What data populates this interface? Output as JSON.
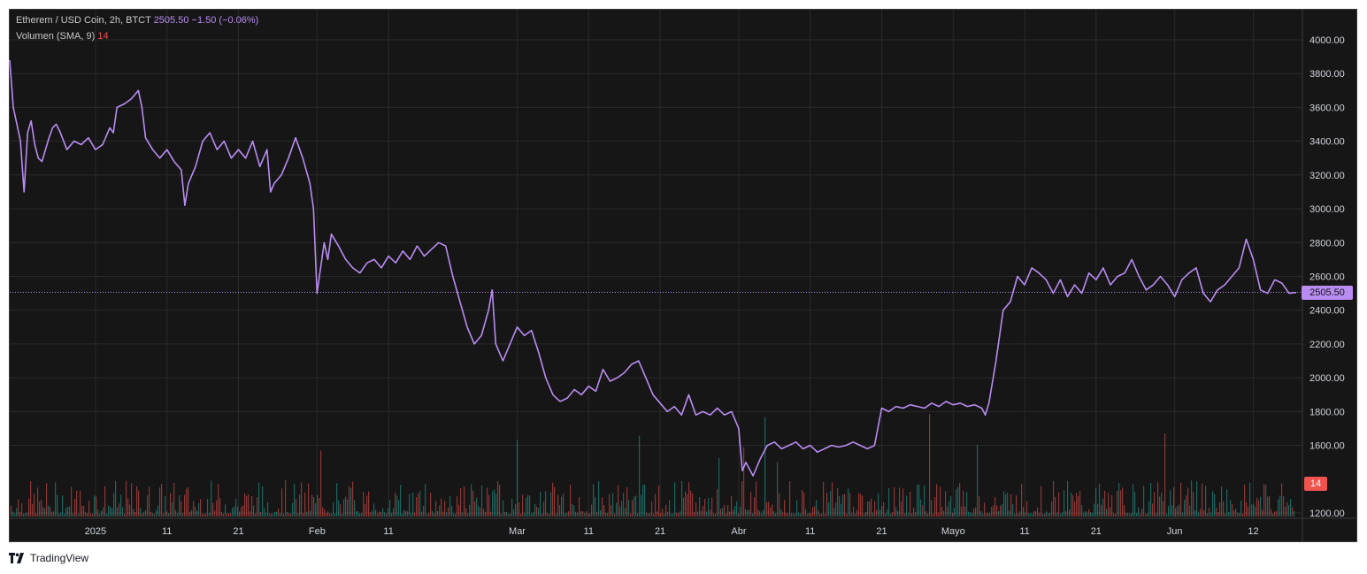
{
  "legend": {
    "symbol": "Etherem / USD Coin, 2h, BTCT",
    "last": "2505.50",
    "change": "−1.50 (−0.06%)",
    "volume_label": "Volumen (SMA, 9)",
    "volume_value": "14"
  },
  "price_tag": "2505.50",
  "volume_tag": "14",
  "brand": {
    "name": "TradingView",
    "logo_icon": "tradingview-logo-icon"
  },
  "colors": {
    "line": "#b98cf2",
    "up_volume": "#26a69a",
    "down_volume": "#ef5350",
    "background": "#161616",
    "grid": "#2a2a2a"
  },
  "chart_data": {
    "type": "line",
    "title": "Etherem / USD Coin, 2h, BTCT",
    "xlabel": "",
    "ylabel": "",
    "ylim": [
      1150,
      4150
    ],
    "yticks": [
      4000,
      3800,
      3600,
      3400,
      3200,
      3000,
      2800,
      2600,
      2400,
      2200,
      2000,
      1800,
      1600,
      1200
    ],
    "ytick_labels": [
      "4000.00",
      "3800.00",
      "3600.00",
      "3400.00",
      "3200.00",
      "3000.00",
      "2800.00",
      "2600.00",
      "2400.00",
      "2200.00",
      "2000.00",
      "1800.00",
      "1600.00",
      "1200.00"
    ],
    "xticks": [
      {
        "label": "2025",
        "t": 5
      },
      {
        "label": "11",
        "t": 15
      },
      {
        "label": "21",
        "t": 25
      },
      {
        "label": "Feb",
        "t": 36
      },
      {
        "label": "11",
        "t": 46
      },
      {
        "label": "Mar",
        "t": 64
      },
      {
        "label": "11",
        "t": 74
      },
      {
        "label": "21",
        "t": 84
      },
      {
        "label": "Abr",
        "t": 95
      },
      {
        "label": "11",
        "t": 105
      },
      {
        "label": "21",
        "t": 115
      },
      {
        "label": "Mayo",
        "t": 125
      },
      {
        "label": "11",
        "t": 135
      },
      {
        "label": "21",
        "t": 145
      },
      {
        "label": "Jun",
        "t": 156
      },
      {
        "label": "12",
        "t": 167
      }
    ],
    "x_range": [
      -7,
      173
    ],
    "price_line": 2505.5,
    "series": [
      {
        "points": [
          [
            -7,
            3880
          ],
          [
            -6.5,
            3600
          ],
          [
            -6,
            3500
          ],
          [
            -5.5,
            3400
          ],
          [
            -5,
            3100
          ],
          [
            -4.5,
            3450
          ],
          [
            -4,
            3520
          ],
          [
            -3.5,
            3380
          ],
          [
            -3,
            3300
          ],
          [
            -2.5,
            3280
          ],
          [
            -2,
            3350
          ],
          [
            -1.5,
            3420
          ],
          [
            -1,
            3480
          ],
          [
            -0.5,
            3500
          ],
          [
            0,
            3460
          ],
          [
            1,
            3350
          ],
          [
            2,
            3400
          ],
          [
            3,
            3380
          ],
          [
            4,
            3420
          ],
          [
            5,
            3350
          ],
          [
            6,
            3380
          ],
          [
            7,
            3480
          ],
          [
            7.5,
            3450
          ],
          [
            8,
            3600
          ],
          [
            9,
            3620
          ],
          [
            10,
            3650
          ],
          [
            11,
            3700
          ],
          [
            11.5,
            3600
          ],
          [
            12,
            3420
          ],
          [
            13,
            3350
          ],
          [
            14,
            3300
          ],
          [
            15,
            3350
          ],
          [
            16,
            3280
          ],
          [
            17,
            3230
          ],
          [
            17.5,
            3020
          ],
          [
            18,
            3150
          ],
          [
            19,
            3250
          ],
          [
            20,
            3400
          ],
          [
            21,
            3450
          ],
          [
            22,
            3350
          ],
          [
            23,
            3400
          ],
          [
            24,
            3300
          ],
          [
            25,
            3350
          ],
          [
            26,
            3300
          ],
          [
            27,
            3400
          ],
          [
            28,
            3250
          ],
          [
            29,
            3350
          ],
          [
            29.5,
            3100
          ],
          [
            30,
            3150
          ],
          [
            31,
            3200
          ],
          [
            32,
            3300
          ],
          [
            33,
            3420
          ],
          [
            34,
            3300
          ],
          [
            35,
            3150
          ],
          [
            35.5,
            3000
          ],
          [
            36,
            2500
          ],
          [
            37,
            2800
          ],
          [
            37.5,
            2700
          ],
          [
            38,
            2850
          ],
          [
            39,
            2780
          ],
          [
            40,
            2700
          ],
          [
            41,
            2650
          ],
          [
            42,
            2620
          ],
          [
            43,
            2680
          ],
          [
            44,
            2700
          ],
          [
            45,
            2650
          ],
          [
            46,
            2720
          ],
          [
            47,
            2680
          ],
          [
            48,
            2750
          ],
          [
            49,
            2700
          ],
          [
            50,
            2780
          ],
          [
            51,
            2720
          ],
          [
            52,
            2760
          ],
          [
            53,
            2800
          ],
          [
            54,
            2780
          ],
          [
            55,
            2600
          ],
          [
            56,
            2450
          ],
          [
            57,
            2300
          ],
          [
            58,
            2200
          ],
          [
            59,
            2250
          ],
          [
            60,
            2400
          ],
          [
            60.5,
            2520
          ],
          [
            61,
            2200
          ],
          [
            62,
            2100
          ],
          [
            63,
            2200
          ],
          [
            64,
            2300
          ],
          [
            65,
            2250
          ],
          [
            66,
            2280
          ],
          [
            67,
            2150
          ],
          [
            68,
            2000
          ],
          [
            69,
            1900
          ],
          [
            70,
            1860
          ],
          [
            71,
            1880
          ],
          [
            72,
            1930
          ],
          [
            73,
            1900
          ],
          [
            74,
            1950
          ],
          [
            75,
            1920
          ],
          [
            76,
            2050
          ],
          [
            77,
            1980
          ],
          [
            78,
            2000
          ],
          [
            79,
            2030
          ],
          [
            80,
            2080
          ],
          [
            81,
            2100
          ],
          [
            82,
            2000
          ],
          [
            83,
            1900
          ],
          [
            84,
            1850
          ],
          [
            85,
            1800
          ],
          [
            86,
            1830
          ],
          [
            87,
            1780
          ],
          [
            88,
            1900
          ],
          [
            89,
            1780
          ],
          [
            90,
            1800
          ],
          [
            91,
            1780
          ],
          [
            92,
            1820
          ],
          [
            93,
            1780
          ],
          [
            94,
            1800
          ],
          [
            95,
            1700
          ],
          [
            95.5,
            1450
          ],
          [
            96,
            1500
          ],
          [
            97,
            1420
          ],
          [
            98,
            1520
          ],
          [
            99,
            1600
          ],
          [
            100,
            1620
          ],
          [
            101,
            1580
          ],
          [
            102,
            1600
          ],
          [
            103,
            1620
          ],
          [
            104,
            1580
          ],
          [
            105,
            1600
          ],
          [
            106,
            1560
          ],
          [
            107,
            1580
          ],
          [
            108,
            1600
          ],
          [
            109,
            1590
          ],
          [
            110,
            1600
          ],
          [
            111,
            1620
          ],
          [
            112,
            1600
          ],
          [
            113,
            1580
          ],
          [
            114,
            1600
          ],
          [
            115,
            1820
          ],
          [
            116,
            1800
          ],
          [
            117,
            1830
          ],
          [
            118,
            1820
          ],
          [
            119,
            1840
          ],
          [
            120,
            1830
          ],
          [
            121,
            1820
          ],
          [
            122,
            1850
          ],
          [
            123,
            1830
          ],
          [
            124,
            1860
          ],
          [
            125,
            1840
          ],
          [
            126,
            1850
          ],
          [
            127,
            1830
          ],
          [
            128,
            1840
          ],
          [
            129,
            1820
          ],
          [
            129.5,
            1780
          ],
          [
            130,
            1850
          ],
          [
            131,
            2100
          ],
          [
            132,
            2400
          ],
          [
            133,
            2450
          ],
          [
            134,
            2600
          ],
          [
            135,
            2550
          ],
          [
            136,
            2650
          ],
          [
            137,
            2620
          ],
          [
            138,
            2580
          ],
          [
            139,
            2500
          ],
          [
            140,
            2580
          ],
          [
            141,
            2480
          ],
          [
            142,
            2550
          ],
          [
            143,
            2500
          ],
          [
            144,
            2620
          ],
          [
            145,
            2580
          ],
          [
            146,
            2650
          ],
          [
            147,
            2550
          ],
          [
            148,
            2600
          ],
          [
            149,
            2620
          ],
          [
            150,
            2700
          ],
          [
            151,
            2600
          ],
          [
            152,
            2520
          ],
          [
            153,
            2550
          ],
          [
            154,
            2600
          ],
          [
            155,
            2550
          ],
          [
            156,
            2480
          ],
          [
            157,
            2580
          ],
          [
            158,
            2620
          ],
          [
            159,
            2650
          ],
          [
            160,
            2500
          ],
          [
            161,
            2450
          ],
          [
            162,
            2520
          ],
          [
            163,
            2550
          ],
          [
            164,
            2600
          ],
          [
            165,
            2650
          ],
          [
            166,
            2820
          ],
          [
            167,
            2700
          ],
          [
            168,
            2520
          ],
          [
            169,
            2500
          ],
          [
            170,
            2580
          ],
          [
            171,
            2560
          ],
          [
            172,
            2500
          ],
          [
            173,
            2505
          ]
        ]
      }
    ]
  }
}
